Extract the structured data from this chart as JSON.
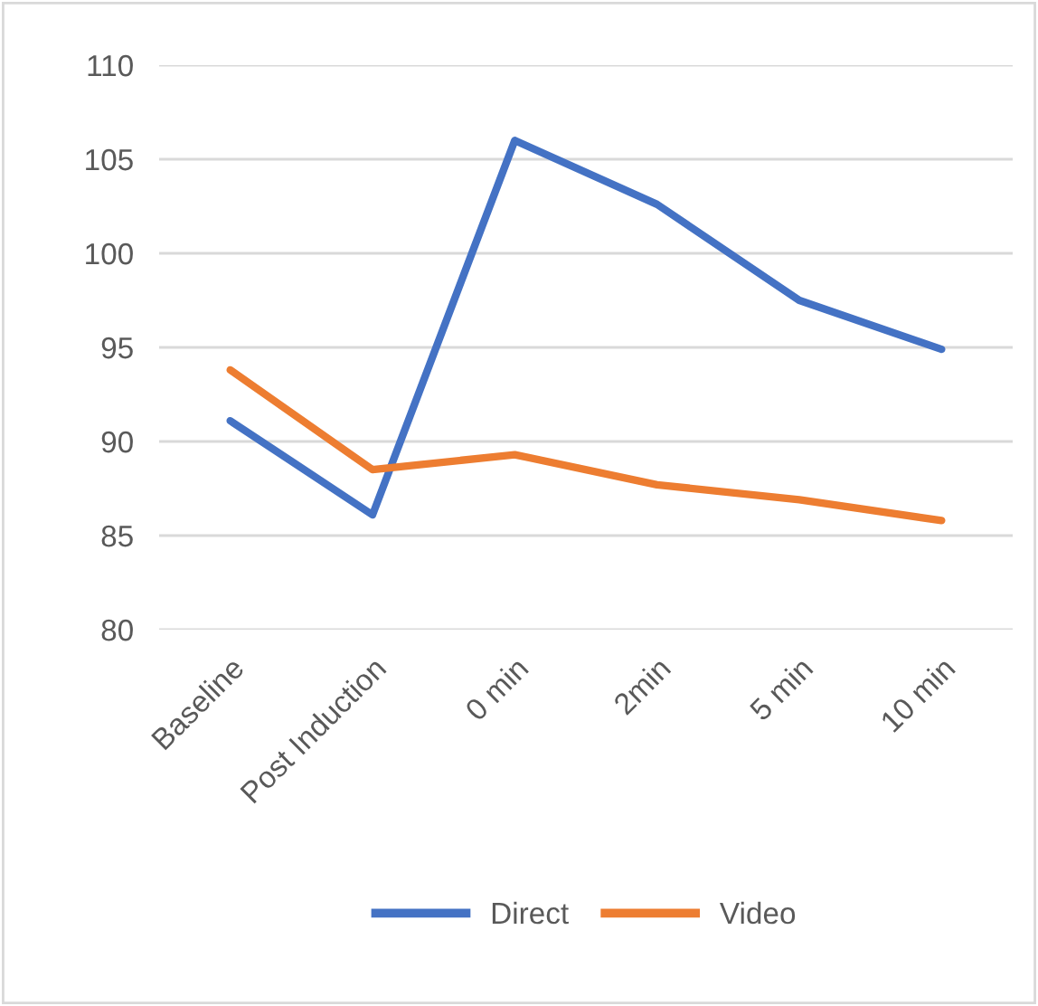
{
  "chart_data": {
    "type": "line",
    "categories": [
      "Baseline",
      "Post Induction",
      "0 min",
      "2min",
      "5 min",
      "10 min"
    ],
    "series": [
      {
        "name": "Direct",
        "color": "#4472c4",
        "values": [
          91.1,
          86.1,
          106,
          102.6,
          97.5,
          94.9
        ]
      },
      {
        "name": "Video",
        "color": "#ed7d31",
        "values": [
          93.8,
          88.5,
          89.3,
          87.7,
          86.9,
          85.8
        ]
      }
    ],
    "ylim": [
      80,
      110
    ],
    "yticks": [
      80,
      85,
      90,
      95,
      100,
      105,
      110
    ],
    "grid": "y",
    "legend": "bottom",
    "marker": "none",
    "line_style": "solid"
  }
}
